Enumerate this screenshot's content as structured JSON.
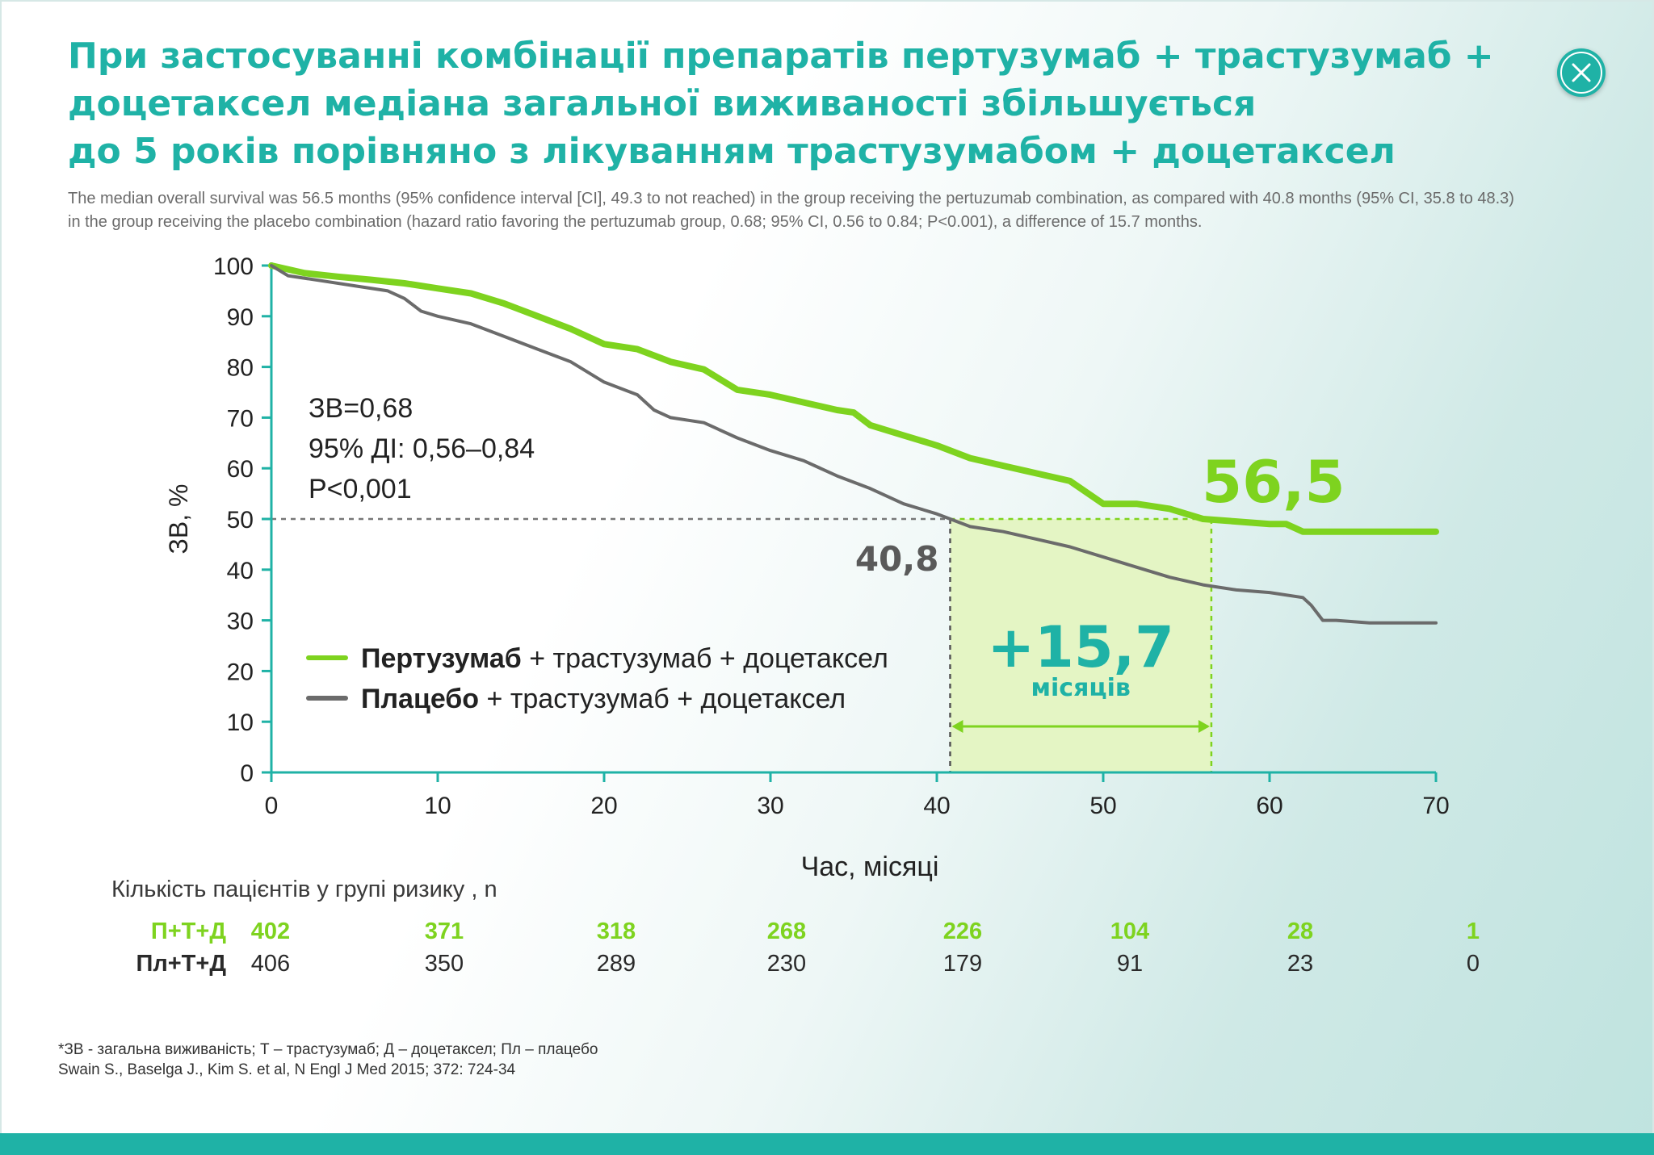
{
  "title_lines": [
    "При застосуванні комбінації препаратів пертузумаб + трастузумаб +",
    "доцетаксел медіана загальної виживаності збільшується",
    "до 5 років порівняно з лікуванням трастузумабом + доцетаксел"
  ],
  "subtitle_lines": [
    "The median overall survival was 56.5 months (95% confidence interval [CI], 49.3 to not reached) in the group receiving the pertuzumab combination, as compared  with 40.8 months (95% CI, 35.8 to 48.3)",
    "in the group receiving the placebo combination (hazard ratio favoring the pertuzumab group, 0.68; 95% CI, 0.56 to 0.84; P<0.001), a difference of 15.7 months."
  ],
  "close_icon": "close-icon",
  "colors": {
    "accent": "#1fb2a6",
    "pertuzumab": "#7ed31f",
    "placebo": "#6b6b6b",
    "highlight": "#e4f5c4"
  },
  "chart_data": {
    "type": "line",
    "xlabel": "Час, місяці",
    "ylabel": "ЗВ, %",
    "xlim": [
      0,
      70
    ],
    "ylim": [
      0,
      100
    ],
    "xticks": [
      0,
      10,
      20,
      30,
      40,
      50,
      60,
      70
    ],
    "yticks": [
      0,
      10,
      20,
      30,
      40,
      50,
      60,
      70,
      80,
      90,
      100
    ],
    "grid": false,
    "stats": [
      "ЗВ=0,68",
      "95% ДІ: 0,56–0,84",
      "P<0,001"
    ],
    "legend": [
      {
        "bold": "Пертузумаб",
        "rest": " + трастузумаб + доцетаксел",
        "color": "#7ed31f"
      },
      {
        "bold": "Плацебо",
        "rest": " + трастузумаб + доцетаксел",
        "color": "#6b6b6b"
      }
    ],
    "series": [
      {
        "id": "pertuzumab",
        "color": "#7ed31f",
        "x": [
          0,
          2,
          4,
          6,
          8,
          10,
          12,
          14,
          16,
          18,
          20,
          22,
          24,
          26,
          28,
          30,
          32,
          34,
          35,
          36,
          38,
          40,
          42,
          44,
          46,
          48,
          50,
          52,
          54,
          56,
          58,
          60,
          61,
          62,
          64,
          66,
          68,
          70
        ],
        "y": [
          100,
          98.5,
          97.8,
          97.2,
          96.5,
          95.5,
          94.5,
          92.5,
          90,
          87.5,
          84.5,
          83.5,
          81,
          79.5,
          75.5,
          74.5,
          73,
          71.5,
          71,
          68.5,
          66.5,
          64.5,
          62,
          60.5,
          59,
          57.5,
          53,
          53,
          52,
          50,
          49.5,
          49,
          49,
          47.5,
          47.5,
          47.5,
          47.5,
          47.5
        ]
      },
      {
        "id": "placebo",
        "color": "#6b6b6b",
        "x": [
          0,
          1,
          3,
          5,
          7,
          8,
          9,
          10,
          12,
          14,
          16,
          18,
          20,
          22,
          23,
          24,
          26,
          28,
          30,
          32,
          34,
          36,
          38,
          40,
          42,
          44,
          46,
          48,
          50,
          52,
          54,
          56,
          58,
          60,
          62,
          62.5,
          63.2,
          64,
          66,
          68,
          70
        ],
        "y": [
          100,
          98,
          97,
          96,
          95,
          93.5,
          91,
          90,
          88.5,
          86,
          83.5,
          81,
          77,
          74.5,
          71.5,
          70,
          69,
          66,
          63.5,
          61.5,
          58.5,
          56,
          53,
          51,
          48.5,
          47.5,
          46,
          44.5,
          42.5,
          40.5,
          38.5,
          37,
          36,
          35.5,
          34.5,
          33,
          30,
          30,
          29.5,
          29.5,
          29.5
        ]
      }
    ],
    "annotations": {
      "placebo_median": {
        "x": 40.8,
        "y": 50,
        "label": "40,8"
      },
      "pertuzumab_median": {
        "x": 56.5,
        "y": 50,
        "label": "56,5"
      },
      "difference": {
        "label": "+15,7",
        "unit": "місяців"
      }
    }
  },
  "risk_table": {
    "title": "Кількість пацієнтів у групі ризику , n",
    "x": [
      0,
      10,
      20,
      30,
      40,
      50,
      60,
      70
    ],
    "rows": [
      {
        "label": "П+Т+Д",
        "values": [
          "402",
          "371",
          "318",
          "268",
          "226",
          "104",
          "28",
          "1"
        ]
      },
      {
        "label": "Пл+Т+Д",
        "values": [
          "406",
          "350",
          "289",
          "230",
          "179",
          "91",
          "23",
          "0"
        ]
      }
    ]
  },
  "footnote_lines": [
    "*ЗВ - загальна виживаність; Т – трастузумаб; Д – доцетаксел; Пл – плацебо",
    "Swain S., Baselga J., Kim S. et al, N Engl J Med 2015; 372: 724-34"
  ]
}
